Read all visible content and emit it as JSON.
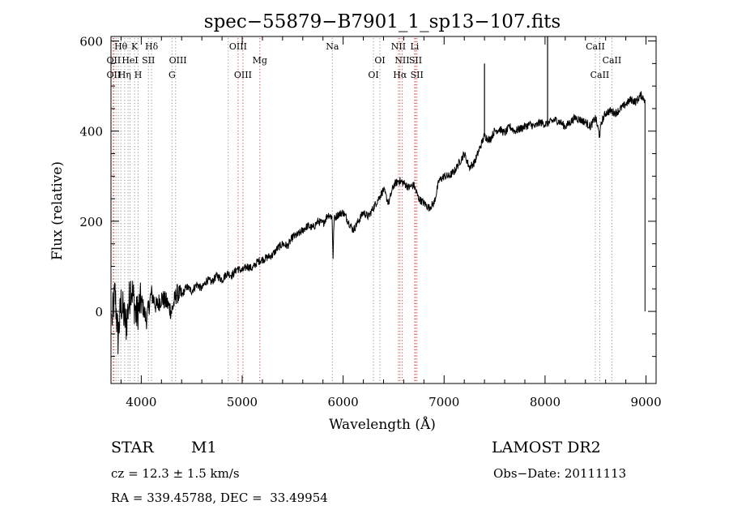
{
  "chart_data": {
    "type": "line",
    "title": "spec−55879−B7901_1_sp13−107.fits",
    "xlabel": "Wavelength (Å)",
    "ylabel": "Flux (relative)",
    "xlim": [
      3700,
      9100
    ],
    "ylim": [
      -160,
      610
    ],
    "xticks": [
      {
        "value": 4000,
        "label": "4000"
      },
      {
        "value": 5000,
        "label": "5000"
      },
      {
        "value": 6000,
        "label": "6000"
      },
      {
        "value": 7000,
        "label": "7000"
      },
      {
        "value": 8000,
        "label": "8000"
      },
      {
        "value": 9000,
        "label": "9000"
      }
    ],
    "yticks": [
      {
        "value": 0,
        "label": "0"
      },
      {
        "value": 200,
        "label": "200"
      },
      {
        "value": 400,
        "label": "400"
      },
      {
        "value": 600,
        "label": "600"
      }
    ],
    "line_color": "#000000",
    "emission_color": "#d04040",
    "absorption_color": "#909090",
    "series": [
      {
        "x": [
          3710,
          3740,
          3770,
          3800,
          3850,
          3900,
          3950,
          4000,
          4050,
          4100,
          4150,
          4200,
          4250,
          4300,
          4350,
          4400,
          4450,
          4500,
          4550,
          4600,
          4650,
          4700,
          4750,
          4800,
          4850,
          4900,
          4950,
          5000,
          5050,
          5100,
          5150,
          5200,
          5250,
          5300,
          5350,
          5400,
          5450,
          5500,
          5550,
          5600,
          5650,
          5700,
          5750,
          5800,
          5850,
          5890,
          5900,
          5910,
          5950,
          6000,
          6050,
          6100,
          6150,
          6200,
          6250,
          6300,
          6350,
          6400,
          6450,
          6500,
          6550,
          6600,
          6650,
          6700,
          6750,
          6800,
          6850,
          6900,
          6950,
          7000,
          7050,
          7100,
          7150,
          7200,
          7250,
          7300,
          7350,
          7400,
          7450,
          7500,
          7550,
          7600,
          7650,
          7700,
          7750,
          7800,
          7850,
          7900,
          7950,
          8000,
          8050,
          8100,
          8150,
          8200,
          8250,
          8300,
          8350,
          8400,
          8450,
          8500,
          8540,
          8560,
          8600,
          8650,
          8700,
          8750,
          8800,
          8850,
          8900,
          8950,
          8990
        ],
        "y": [
          -20,
          40,
          -60,
          20,
          -30,
          60,
          -10,
          25,
          -20,
          40,
          10,
          30,
          20,
          0,
          40,
          35,
          55,
          45,
          60,
          50,
          70,
          65,
          80,
          70,
          85,
          80,
          95,
          90,
          100,
          95,
          110,
          115,
          120,
          125,
          140,
          150,
          145,
          165,
          170,
          180,
          190,
          185,
          200,
          195,
          215,
          210,
          120,
          205,
          215,
          220,
          200,
          180,
          200,
          220,
          210,
          230,
          250,
          270,
          240,
          280,
          290,
          285,
          275,
          280,
          250,
          240,
          230,
          240,
          290,
          300,
          300,
          310,
          330,
          350,
          320,
          330,
          360,
          390,
          380,
          400,
          405,
          395,
          410,
          400,
          405,
          410,
          415,
          410,
          420,
          415,
          420,
          425,
          420,
          410,
          420,
          430,
          425,
          420,
          410,
          430,
          390,
          420,
          440,
          445,
          440,
          450,
          460,
          470,
          465,
          480,
          470
        ]
      }
    ],
    "spikes": [
      {
        "x": 7400,
        "y": 550
      },
      {
        "x": 8025,
        "y": 610
      }
    ],
    "line_markers": [
      {
        "x": 3722,
        "kind": "emission"
      },
      {
        "x": 3730,
        "kind": "emission"
      },
      {
        "x": 3750,
        "kind": "absorption"
      },
      {
        "x": 3772,
        "kind": "absorption"
      },
      {
        "x": 3798,
        "kind": "absorption"
      },
      {
        "x": 3835,
        "kind": "absorption"
      },
      {
        "x": 3869,
        "kind": "absorption"
      },
      {
        "x": 3889,
        "kind": "absorption"
      },
      {
        "x": 3934,
        "kind": "absorption"
      },
      {
        "x": 3969,
        "kind": "absorption"
      },
      {
        "x": 4071,
        "kind": "absorption"
      },
      {
        "x": 4102,
        "kind": "absorption"
      },
      {
        "x": 4305,
        "kind": "absorption"
      },
      {
        "x": 4340,
        "kind": "absorption"
      },
      {
        "x": 4861,
        "kind": "absorption"
      },
      {
        "x": 4959,
        "kind": "emission"
      },
      {
        "x": 5007,
        "kind": "emission"
      },
      {
        "x": 5175,
        "kind": "emission"
      },
      {
        "x": 5893,
        "kind": "absorption"
      },
      {
        "x": 6300,
        "kind": "absorption"
      },
      {
        "x": 6364,
        "kind": "absorption"
      },
      {
        "x": 6548,
        "kind": "emission"
      },
      {
        "x": 6563,
        "kind": "emission"
      },
      {
        "x": 6584,
        "kind": "emission"
      },
      {
        "x": 6708,
        "kind": "emission"
      },
      {
        "x": 6717,
        "kind": "emission"
      },
      {
        "x": 6731,
        "kind": "emission"
      },
      {
        "x": 8498,
        "kind": "absorption"
      },
      {
        "x": 8542,
        "kind": "absorption"
      },
      {
        "x": 8662,
        "kind": "absorption"
      }
    ],
    "line_labels": [
      {
        "text": "Hθ",
        "x": 3798,
        "row": 1
      },
      {
        "text": "K",
        "x": 3934,
        "row": 1
      },
      {
        "text": "Hδ",
        "x": 4102,
        "row": 1
      },
      {
        "text": "OIII",
        "x": 4959,
        "row": 1
      },
      {
        "text": "Na",
        "x": 5893,
        "row": 1
      },
      {
        "text": "NII",
        "x": 6548,
        "row": 1
      },
      {
        "text": "Li",
        "x": 6708,
        "row": 1
      },
      {
        "text": "CaII",
        "x": 8498,
        "row": 1
      },
      {
        "text": "OII",
        "x": 3727,
        "row": 2
      },
      {
        "text": "HeI",
        "x": 3889,
        "row": 2
      },
      {
        "text": "SII",
        "x": 4071,
        "row": 2
      },
      {
        "text": "OIII",
        "x": 4363,
        "row": 2
      },
      {
        "text": "Mg",
        "x": 5175,
        "row": 2
      },
      {
        "text": "OI",
        "x": 6364,
        "row": 2
      },
      {
        "text": "NII",
        "x": 6584,
        "row": 2
      },
      {
        "text": "SII",
        "x": 6717,
        "row": 2
      },
      {
        "text": "CaII",
        "x": 8662,
        "row": 2
      },
      {
        "text": "OII",
        "x": 3727,
        "row": 3
      },
      {
        "text": "Hη",
        "x": 3835,
        "row": 3
      },
      {
        "text": "H",
        "x": 3969,
        "row": 3
      },
      {
        "text": "G",
        "x": 4305,
        "row": 3
      },
      {
        "text": "OIII",
        "x": 5007,
        "row": 3
      },
      {
        "text": "OI",
        "x": 6300,
        "row": 3
      },
      {
        "text": "Hα",
        "x": 6563,
        "row": 3
      },
      {
        "text": "SII",
        "x": 6731,
        "row": 3
      },
      {
        "text": "CaII",
        "x": 8542,
        "row": 3
      }
    ]
  },
  "info": {
    "class": "STAR",
    "subclass": "M1",
    "survey": "LAMOST DR2",
    "cz": "cz = 12.3 ± 1.5 km/s",
    "obs_date": "Obs−Date: 20111113",
    "radec": "RA = 339.45788, DEC =  33.49954"
  }
}
